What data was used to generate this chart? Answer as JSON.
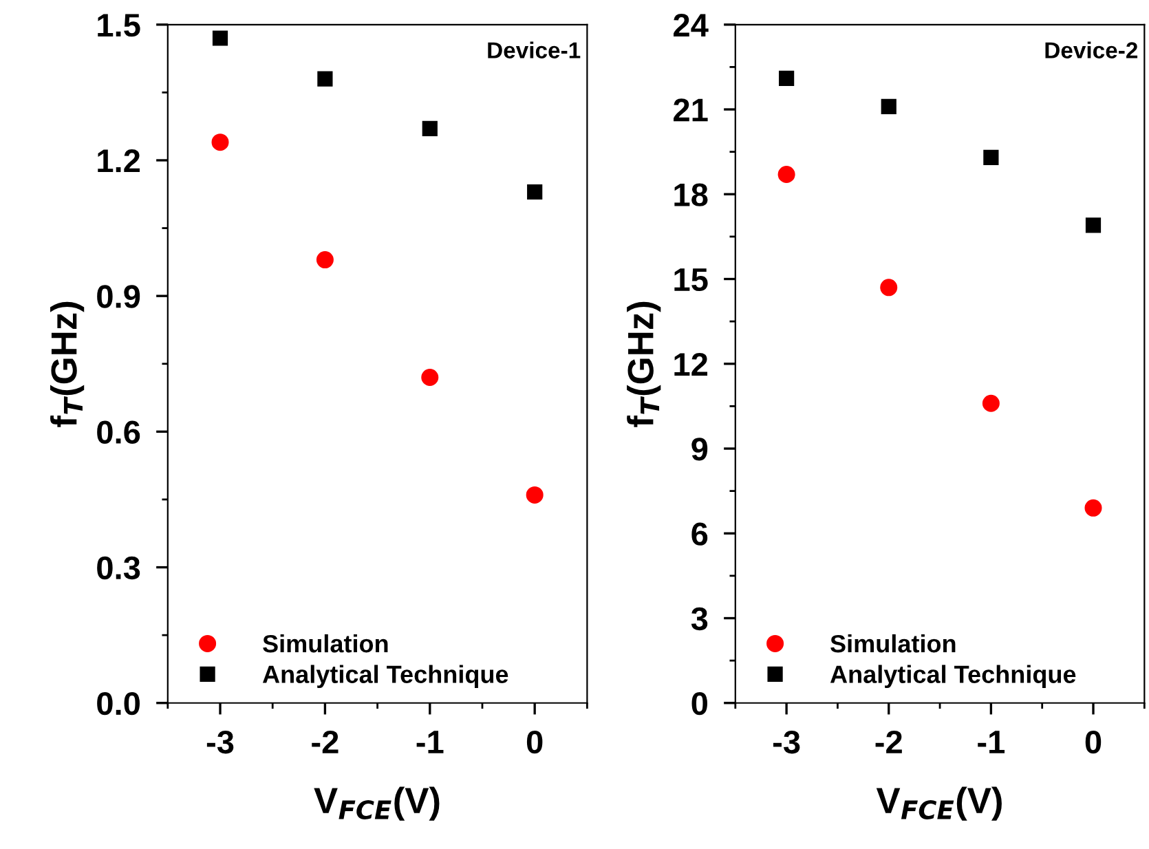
{
  "chart_data": [
    {
      "type": "scatter",
      "xlabel": "V$_{FCE}$(V)",
      "ylabel": "f$_{T}$(GHz)",
      "annotations": [
        "Device-1"
      ],
      "x": [
        -3,
        -2,
        -1,
        0
      ],
      "xlim": [
        -3.5,
        0.5
      ],
      "xticks": [
        -3,
        -2,
        -1,
        0
      ],
      "ylim": [
        0,
        1.5
      ],
      "yticks": [
        {
          "value": 0,
          "label": "0.0"
        },
        0.3,
        0.6,
        0.9,
        1.2,
        1.5
      ],
      "legend": "bottom left",
      "grid": false,
      "series": [
        {
          "name": "Simulation",
          "color": "#ff0000",
          "marker": "circle",
          "values": [
            1.24,
            0.98,
            0.72,
            0.46
          ]
        },
        {
          "name": "Analytical Technique",
          "color": "#000000",
          "marker": "square",
          "values": [
            1.47,
            1.38,
            1.27,
            1.13
          ]
        }
      ]
    },
    {
      "type": "scatter",
      "xlabel": "V$_{FCE}$(V)",
      "ylabel": "f$_{T}$(GHz)",
      "annotations": [
        "Device-2"
      ],
      "x": [
        -3,
        -2,
        -1,
        0
      ],
      "xlim": [
        -3.5,
        0.5
      ],
      "xticks": [
        -3,
        -2,
        -1,
        0
      ],
      "ylim": [
        0,
        24
      ],
      "yticks": [
        0,
        3,
        6,
        9,
        12,
        15,
        18,
        21,
        24
      ],
      "legend": "bottom left",
      "grid": false,
      "series": [
        {
          "name": "Simulation",
          "color": "#ff0000",
          "marker": "circle",
          "values": [
            18.7,
            14.7,
            10.6,
            6.9
          ]
        },
        {
          "name": "Analytical Technique",
          "color": "#000000",
          "marker": "square",
          "values": [
            22.1,
            21.1,
            19.3,
            16.9
          ]
        }
      ]
    }
  ]
}
